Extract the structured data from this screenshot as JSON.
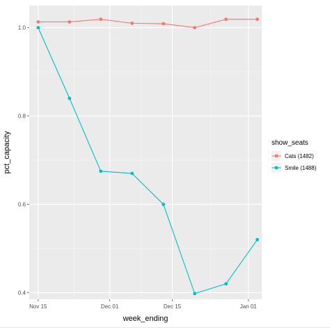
{
  "chart_data": {
    "type": "line",
    "xlabel": "week_ending",
    "ylabel": "pct_capacity",
    "x_tick_labels": [
      "Nov 15",
      "Dec 01",
      "Dec 15",
      "Jan 01"
    ],
    "x_ticks": [
      "2015-11-15",
      "2015-12-01",
      "2015-12-15",
      "2016-01-01"
    ],
    "xlim": [
      "2015-11-13",
      "2016-01-04"
    ],
    "y_ticks": [
      0.4,
      0.6,
      0.8,
      1.0
    ],
    "y_tick_labels": [
      "0.4",
      "0.6",
      "0.8",
      "1.0"
    ],
    "ylim": [
      0.385,
      1.05
    ],
    "grid": true,
    "panel_background": "#ebebeb",
    "legend": {
      "title": "show_seats",
      "position": "right"
    },
    "x": [
      "2015-11-15",
      "2015-11-22",
      "2015-11-29",
      "2015-12-06",
      "2015-12-13",
      "2015-12-20",
      "2015-12-27",
      "2016-01-03"
    ],
    "series": [
      {
        "name": "Cats (1482)",
        "color": "#F8766D",
        "values": [
          1.013,
          1.013,
          1.019,
          1.01,
          1.009,
          1.0,
          1.019,
          1.019
        ]
      },
      {
        "name": "Smile (1488)",
        "color": "#00BFC4",
        "values": [
          1.0,
          0.84,
          0.675,
          0.67,
          0.6,
          0.398,
          0.42,
          0.52
        ]
      }
    ]
  }
}
